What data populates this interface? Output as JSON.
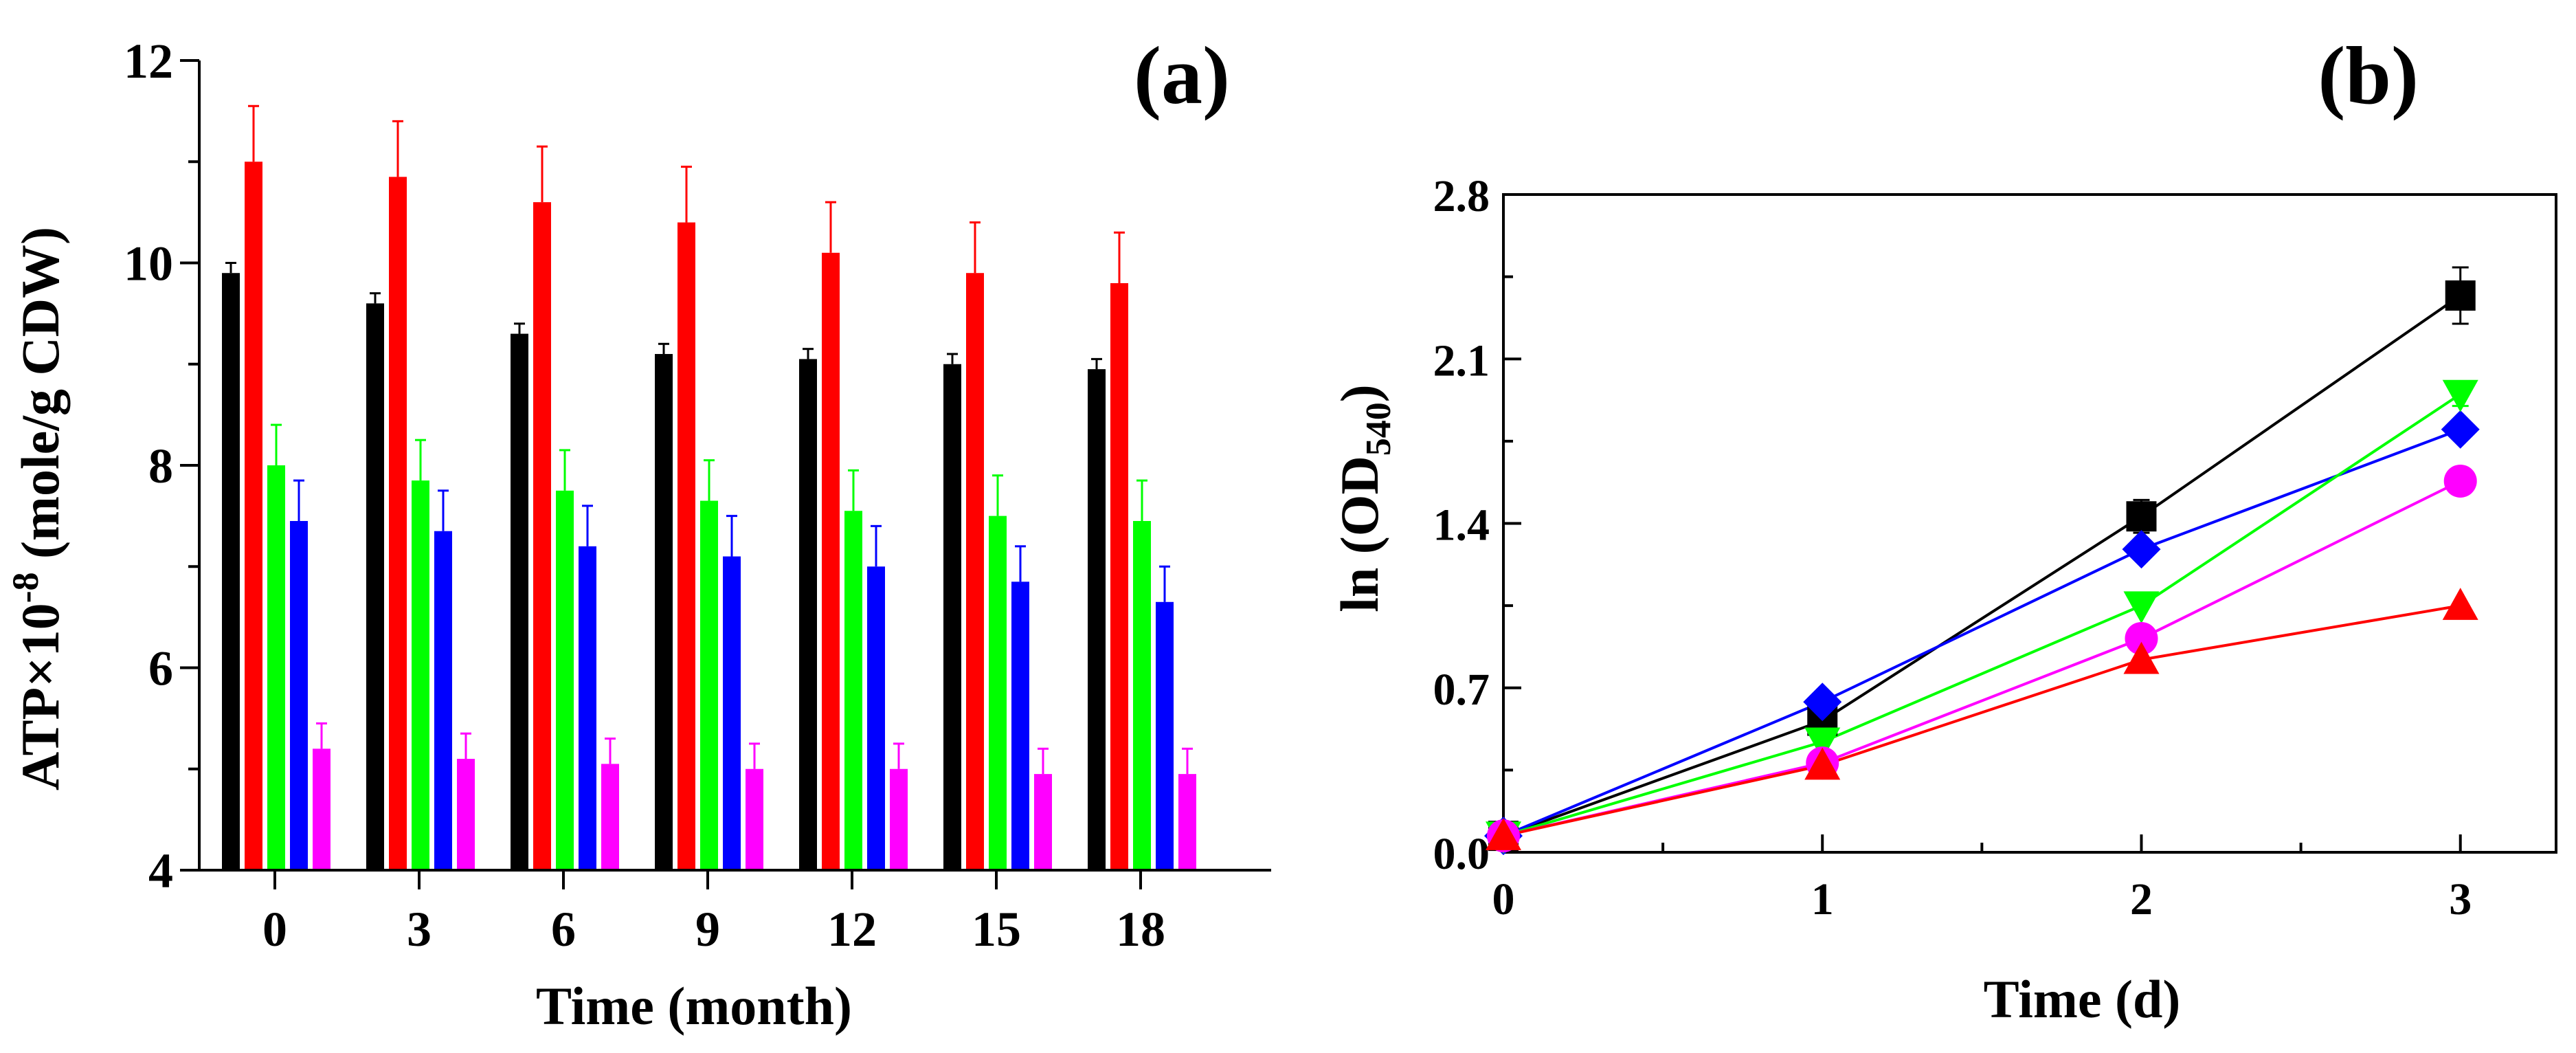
{
  "chart_data": [
    {
      "type": "bar",
      "panel_label": "(a)",
      "xlabel": "Time (month)",
      "ylabel_prefix": "ATP×10",
      "ylabel_exp": "-8",
      "ylabel_suffix": " (mole/g CDW)",
      "ylim": [
        4,
        12
      ],
      "yticks": [
        "4",
        "6",
        "8",
        "10",
        "12"
      ],
      "categories": [
        "0",
        "3",
        "6",
        "9",
        "12",
        "15",
        "18"
      ],
      "series": [
        {
          "color": "#000000",
          "values": [
            9.9,
            9.6,
            9.3,
            9.1,
            9.05,
            9.0,
            8.95
          ],
          "errors": [
            0.1,
            0.1,
            0.1,
            0.1,
            0.1,
            0.1,
            0.1
          ]
        },
        {
          "color": "#ff0000",
          "values": [
            11.0,
            10.85,
            10.6,
            10.4,
            10.1,
            9.9,
            9.8
          ],
          "errors": [
            0.55,
            0.55,
            0.55,
            0.55,
            0.5,
            0.5,
            0.5
          ]
        },
        {
          "color": "#00ff00",
          "values": [
            8.0,
            7.85,
            7.75,
            7.65,
            7.55,
            7.5,
            7.45
          ],
          "errors": [
            0.4,
            0.4,
            0.4,
            0.4,
            0.4,
            0.4,
            0.4
          ]
        },
        {
          "color": "#0000ff",
          "values": [
            7.45,
            7.35,
            7.2,
            7.1,
            7.0,
            6.85,
            6.65
          ],
          "errors": [
            0.4,
            0.4,
            0.4,
            0.4,
            0.4,
            0.35,
            0.35
          ]
        },
        {
          "color": "#ff00ff",
          "values": [
            5.2,
            5.1,
            5.05,
            5.0,
            5.0,
            4.95,
            4.95
          ],
          "errors": [
            0.25,
            0.25,
            0.25,
            0.25,
            0.25,
            0.25,
            0.25
          ]
        }
      ],
      "grid": false,
      "legend": "none"
    },
    {
      "type": "line",
      "panel_label": "(b)",
      "xlabel": "Time (d)",
      "ylabel_main": "ln (OD",
      "ylabel_sub": "540",
      "ylabel_close": ")",
      "xlim": [
        0,
        3.3
      ],
      "ylim": [
        0,
        2.8
      ],
      "xticks": [
        "0",
        "1",
        "2",
        "3"
      ],
      "yticks": [
        "0.0",
        "0.7",
        "1.4",
        "2.1",
        "2.8"
      ],
      "x": [
        0,
        1,
        2,
        3
      ],
      "series": [
        {
          "color": "#000000",
          "marker": "square",
          "values": [
            0.07,
            0.56,
            1.43,
            2.37
          ],
          "errors": [
            0,
            0.05,
            0.07,
            0.12
          ]
        },
        {
          "color": "#0000ff",
          "marker": "diamond",
          "values": [
            0.07,
            0.64,
            1.29,
            1.8
          ],
          "errors": [
            0,
            0,
            0,
            0
          ]
        },
        {
          "color": "#00ff00",
          "marker": "triangle-down",
          "values": [
            0.07,
            0.47,
            1.05,
            1.95
          ],
          "errors": [
            0,
            0,
            0,
            0.05
          ]
        },
        {
          "color": "#ff00ff",
          "marker": "circle",
          "values": [
            0.07,
            0.38,
            0.91,
            1.58
          ],
          "errors": [
            0,
            0,
            0,
            0
          ]
        },
        {
          "color": "#ff0000",
          "marker": "triangle-up",
          "values": [
            0.07,
            0.37,
            0.82,
            1.05
          ],
          "errors": [
            0,
            0,
            0,
            0
          ]
        }
      ],
      "grid": false,
      "legend": "none"
    }
  ]
}
